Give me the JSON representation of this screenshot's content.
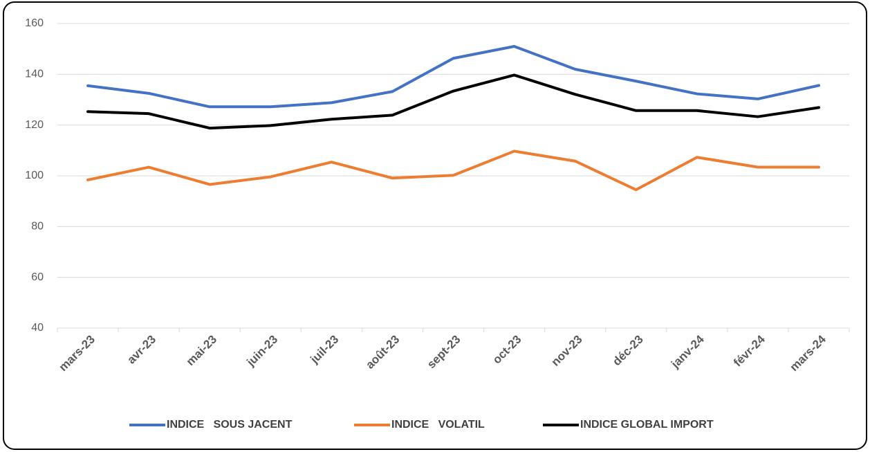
{
  "chart_data": {
    "type": "line",
    "categories": [
      "mars-23",
      "avr-23",
      "mai-23",
      "juin-23",
      "juil-23",
      "août-23",
      "sept-23",
      "oct-23",
      "nov-23",
      "déc-23",
      "janv-24",
      "févr-24",
      "mars-24"
    ],
    "series": [
      {
        "name": "INDICE   SOUS JACENT",
        "color": "#4472c4",
        "values": [
          135.5,
          132.5,
          127.2,
          127.2,
          128.8,
          133.2,
          146.3,
          151,
          142,
          137.3,
          132.3,
          130.3,
          135.6
        ]
      },
      {
        "name": "INDICE   VOLATIL",
        "color": "#ed7d31",
        "values": [
          98.4,
          103.4,
          96.6,
          99.6,
          105.4,
          99.1,
          100.2,
          109.7,
          105.8,
          94.5,
          107.3,
          103.4,
          103.4
        ]
      },
      {
        "name": "INDICE GLOBAL IMPORT",
        "color": "#000000",
        "values": [
          125.3,
          124.5,
          118.8,
          119.8,
          122.3,
          123.9,
          133.4,
          139.7,
          132.1,
          125.7,
          125.7,
          123.3,
          126.9
        ]
      }
    ],
    "ylim": [
      40,
      160
    ],
    "yticks": [
      40,
      60,
      80,
      100,
      120,
      140,
      160
    ],
    "grid": true,
    "legend": "bottom"
  }
}
